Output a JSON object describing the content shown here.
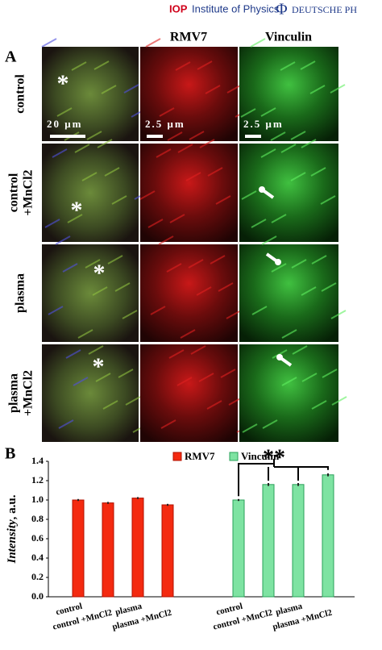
{
  "header": {
    "logo": "IOP",
    "publisher": "Institute of Physics",
    "partner": "DEUTSCHE PH"
  },
  "panel_a": {
    "label": "A",
    "columns": [
      "RMV7",
      "Vinculin"
    ],
    "rows": [
      [
        "control"
      ],
      [
        "control",
        "+MnCl2"
      ],
      [
        "plasma"
      ],
      [
        "plasma",
        "+MnCl2"
      ]
    ],
    "scale_bars": [
      "20 μm",
      "2.5 μm",
      "2.5 μm"
    ],
    "marker": "*"
  },
  "chart_data": {
    "type": "bar",
    "label": "B",
    "y_label": "Intensity",
    "y_label_unit": ", a.u.",
    "categories": [
      "control",
      "control +MnCl2",
      "plasma",
      "plasma +MnCl2"
    ],
    "series": [
      {
        "name": "RMV7",
        "color": "#f42a10",
        "values": [
          1.0,
          0.97,
          1.02,
          0.95
        ],
        "errors": [
          0.01,
          0.01,
          0.01,
          0.01
        ]
      },
      {
        "name": "Vinculin",
        "color": "#7ee3a2",
        "values": [
          1.0,
          1.16,
          1.16,
          1.26
        ],
        "errors": [
          0.01,
          0.015,
          0.015,
          0.015
        ]
      }
    ],
    "ylim": [
      0,
      1.4
    ],
    "yticks": [
      {
        "value": 0,
        "label": "0.0"
      },
      0.2,
      0.4,
      0.6,
      0.8,
      {
        "value": 1,
        "label": "1.0"
      },
      1.2,
      1.4
    ],
    "annotation": "**"
  }
}
